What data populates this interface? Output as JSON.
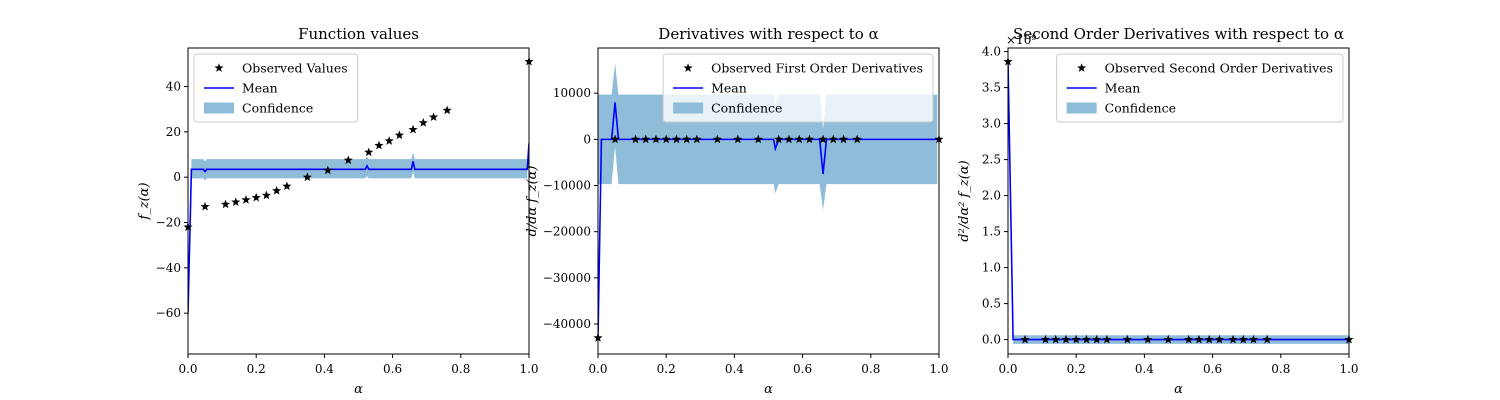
{
  "figure": {
    "background": "#ffffff",
    "confidence_color": "#8fbcd9",
    "mean_color": "#0000ff",
    "observed_color": "#000000",
    "marker_icon": "star-icon"
  },
  "chart_data": [
    {
      "type": "line",
      "title": "Function values",
      "xlabel": "α",
      "ylabel": "f_z(α)",
      "xlim": [
        0.0,
        1.0
      ],
      "ylim": [
        -78,
        57
      ],
      "xticks": [
        0.0,
        0.2,
        0.4,
        0.6,
        0.8,
        1.0
      ],
      "xtick_labels": [
        "0.0",
        "0.2",
        "0.4",
        "0.6",
        "0.8",
        "1.0"
      ],
      "yticks": [
        40,
        20,
        0,
        -20,
        -40,
        -60
      ],
      "ytick_labels": [
        "40",
        "20",
        "0",
        "−20",
        "−40",
        "−60"
      ],
      "exponent_label": "",
      "legend_position": "upper left",
      "legend": {
        "observed": "Observed Values",
        "mean": "Mean",
        "confidence": "Confidence"
      },
      "observed": {
        "x": [
          0.0,
          0.05,
          0.11,
          0.14,
          0.17,
          0.2,
          0.23,
          0.26,
          0.29,
          0.35,
          0.41,
          0.47,
          0.53,
          0.56,
          0.59,
          0.62,
          0.66,
          0.69,
          0.72,
          0.76,
          1.0
        ],
        "y": [
          -22,
          -13,
          -12,
          -11,
          -10,
          -9,
          -8,
          -6,
          -4,
          0,
          3,
          7.5,
          11,
          14,
          16,
          18.5,
          21,
          24,
          26.5,
          29.5,
          51
        ]
      },
      "mean": {
        "x": [
          0.0,
          0.01,
          0.045,
          0.05,
          0.055,
          0.52,
          0.525,
          0.53,
          0.655,
          0.66,
          0.665,
          0.995,
          1.0
        ],
        "y": [
          -60,
          3.5,
          3.5,
          2.5,
          3.5,
          3.5,
          5,
          3.5,
          3.5,
          7,
          3.5,
          3.5,
          15
        ]
      },
      "confidence": {
        "x": [
          0.01,
          0.045,
          0.05,
          0.055,
          0.52,
          0.525,
          0.53,
          0.655,
          0.66,
          0.665,
          0.995
        ],
        "upper": [
          8,
          8,
          7,
          8,
          8,
          9,
          8,
          8,
          11,
          8,
          8
        ],
        "lower": [
          -0.5,
          -0.5,
          -1.5,
          -0.5,
          -0.5,
          0.5,
          -0.5,
          -0.5,
          2.5,
          -0.5,
          -0.5
        ]
      }
    },
    {
      "type": "line",
      "title": "Derivatives with respect to α",
      "xlabel": "α",
      "ylabel": "d/dα f_z(α)",
      "xlim": [
        0.0,
        1.0
      ],
      "ylim": [
        -46500,
        19800
      ],
      "xticks": [
        0.0,
        0.2,
        0.4,
        0.6,
        0.8,
        1.0
      ],
      "xtick_labels": [
        "0.0",
        "0.2",
        "0.4",
        "0.6",
        "0.8",
        "1.0"
      ],
      "yticks": [
        10000,
        0,
        -10000,
        -20000,
        -30000,
        -40000
      ],
      "ytick_labels": [
        "10000",
        "0",
        "−10000",
        "−20000",
        "−30000",
        "−40000"
      ],
      "exponent_label": "",
      "legend_position": "upper right",
      "legend": {
        "observed": "Observed First Order Derivatives",
        "mean": "Mean",
        "confidence": "Confidence"
      },
      "observed": {
        "x": [
          0.0,
          0.05,
          0.11,
          0.14,
          0.17,
          0.2,
          0.23,
          0.26,
          0.29,
          0.35,
          0.41,
          0.47,
          0.53,
          0.56,
          0.59,
          0.62,
          0.66,
          0.69,
          0.72,
          0.76,
          1.0
        ],
        "y": [
          -43000,
          0,
          0,
          0,
          0,
          0,
          0,
          0,
          0,
          0,
          0,
          0,
          0,
          0,
          0,
          0,
          0,
          0,
          0,
          0,
          0
        ]
      },
      "mean": {
        "x": [
          0.0,
          0.01,
          0.04,
          0.05,
          0.06,
          0.515,
          0.52,
          0.53,
          0.65,
          0.66,
          0.67,
          1.0
        ],
        "y": [
          -43000,
          0,
          0,
          8000,
          0,
          0,
          -2000,
          0,
          0,
          -7500,
          0,
          0
        ]
      },
      "confidence": {
        "x": [
          0.0,
          0.04,
          0.05,
          0.06,
          0.515,
          0.52,
          0.53,
          0.65,
          0.66,
          0.67,
          0.995
        ],
        "upper": [
          9700,
          9700,
          16500,
          9700,
          9700,
          7700,
          9700,
          9700,
          2300,
          9700,
          9700
        ],
        "lower": [
          -9700,
          -9700,
          -1500,
          -9700,
          -9700,
          -11700,
          -9700,
          -9700,
          -15300,
          -9700,
          -9700
        ]
      }
    },
    {
      "type": "line",
      "title": "Second Order Derivatives with respect to α",
      "xlabel": "α",
      "ylabel": "d²/dα² f_z(α)",
      "xlim": [
        0.0,
        1.0
      ],
      "ylim": [
        -0.2,
        4.05
      ],
      "xticks": [
        0.0,
        0.2,
        0.4,
        0.6,
        0.8,
        1.0
      ],
      "xtick_labels": [
        "0.0",
        "0.2",
        "0.4",
        "0.6",
        "0.8",
        "1.0"
      ],
      "yticks": [
        4.0,
        3.5,
        3.0,
        2.5,
        2.0,
        1.5,
        1.0,
        0.5,
        0.0
      ],
      "ytick_labels": [
        "4.0",
        "3.5",
        "3.0",
        "2.5",
        "2.0",
        "1.5",
        "1.0",
        "0.5",
        "0.0"
      ],
      "exponent_label": "×10⁹",
      "legend_position": "upper right",
      "legend": {
        "observed": "Observed Second Order Derivatives",
        "mean": "Mean",
        "confidence": "Confidence"
      },
      "observed": {
        "x": [
          0.0,
          0.05,
          0.11,
          0.14,
          0.17,
          0.2,
          0.23,
          0.26,
          0.29,
          0.35,
          0.41,
          0.47,
          0.53,
          0.56,
          0.59,
          0.62,
          0.66,
          0.69,
          0.72,
          0.76,
          1.0
        ],
        "y": [
          3.86,
          0,
          0,
          0,
          0,
          0,
          0,
          0,
          0,
          0,
          0,
          0,
          0,
          0,
          0,
          0,
          0,
          0,
          0,
          0,
          0
        ]
      },
      "mean": {
        "x": [
          0.0,
          0.015,
          1.0
        ],
        "y": [
          3.86,
          0,
          0
        ]
      },
      "confidence": {
        "x": [
          0.015,
          1.0
        ],
        "upper": [
          0.06,
          0.06
        ],
        "lower": [
          -0.06,
          -0.06
        ]
      }
    }
  ]
}
